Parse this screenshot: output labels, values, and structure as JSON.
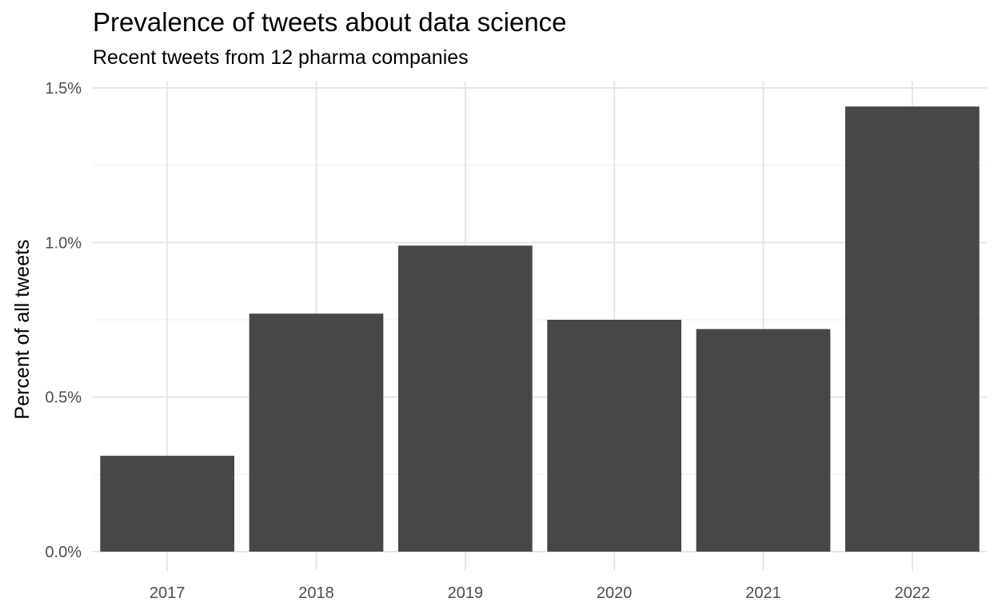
{
  "chart_data": {
    "type": "bar",
    "title": "Prevalence of tweets about data science",
    "subtitle": "Recent tweets from 12 pharma companies",
    "xlabel": "",
    "ylabel": "Percent of all tweets",
    "categories": [
      "2017",
      "2018",
      "2019",
      "2020",
      "2021",
      "2022"
    ],
    "values": [
      0.31,
      0.77,
      0.99,
      0.75,
      0.72,
      1.44
    ],
    "value_unit": "%",
    "ylim": [
      0,
      1.5
    ],
    "y_ticks": [
      0.0,
      0.5,
      1.0,
      1.5
    ],
    "y_tick_labels": [
      "0.0%",
      "0.5%",
      "1.0%",
      "1.5%"
    ],
    "grid": true,
    "legend": "none",
    "colors": {
      "bar": "#474747",
      "grid_major": "#e6e6e6",
      "grid_minor": "#f0f0f0",
      "tick_label": "#4d4d4d"
    }
  }
}
